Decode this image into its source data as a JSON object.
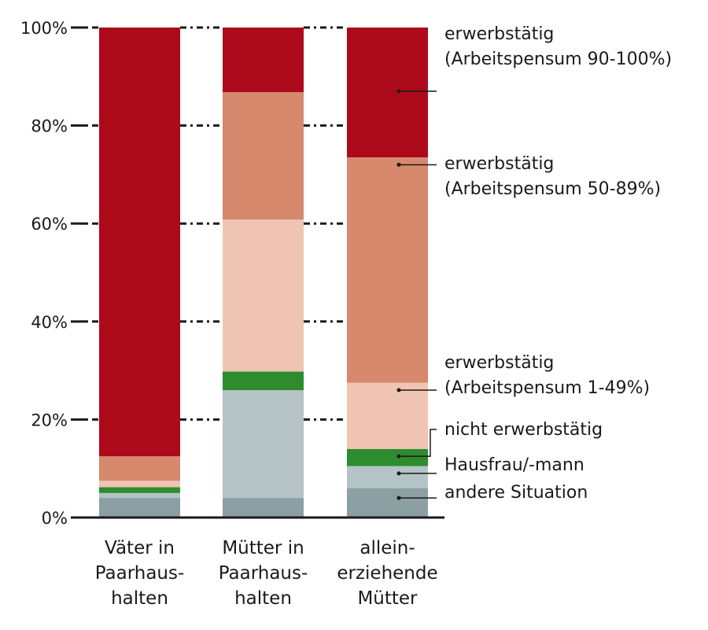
{
  "chart_data": {
    "type": "bar",
    "stacked": true,
    "categories": [
      [
        "Väter in",
        "Paarhaus-",
        "halten"
      ],
      [
        "Mütter in",
        "Paarhaus-",
        "halten"
      ],
      [
        "allein-",
        "erziehende",
        "Mütter"
      ]
    ],
    "ylim": [
      0,
      100
    ],
    "yticks": [
      "0%",
      "20%",
      "40%",
      "60%",
      "80%",
      "100%"
    ],
    "grid": "dashed horizontal lines between bars",
    "series": [
      {
        "name": "andere Situation",
        "color": "#8c9fa3",
        "values": [
          4,
          4,
          6
        ]
      },
      {
        "name": "Hausfrau/-mann",
        "color": "#b4c3c6",
        "values": [
          1,
          22,
          4.5
        ]
      },
      {
        "name": "nicht erwerbstätig",
        "color": "#2e8b2e",
        "values": [
          1.2,
          3.8,
          3.5
        ]
      },
      {
        "name": "erwerbstätig (Arbeitspensum 1–49%)",
        "color": "#f0c4b2",
        "values": [
          1.3,
          31,
          13.5
        ]
      },
      {
        "name": "erwerbstätig (Arbeitspensum 50–89%)",
        "color": "#d6896d",
        "values": [
          5,
          26,
          46
        ]
      },
      {
        "name": "erwerbstätig (Arbeitspensum 90–100%)",
        "color": "#ac0a1a",
        "values": [
          87.5,
          13.2,
          26.5
        ]
      }
    ],
    "legend": [
      {
        "lines": [
          "erwerbstätig",
          "(Arbeitspensum 90-100%)"
        ],
        "series": 5,
        "value": 87
      },
      {
        "lines": [
          "erwerbstätig",
          "(Arbeitspensum 50-89%)"
        ],
        "series": 4,
        "value": 72
      },
      {
        "lines": [
          "erwerbstätig",
          "(Arbeitspensum 1-49%)"
        ],
        "series": 3,
        "value": 26
      },
      {
        "lines": [
          "nicht erwerbstätig"
        ],
        "series": 2,
        "value": 12.5
      },
      {
        "lines": [
          "Hausfrau/-mann"
        ],
        "series": 1,
        "value": 9
      },
      {
        "lines": [
          "andere Situation"
        ],
        "series": 0,
        "value": 4
      }
    ]
  }
}
